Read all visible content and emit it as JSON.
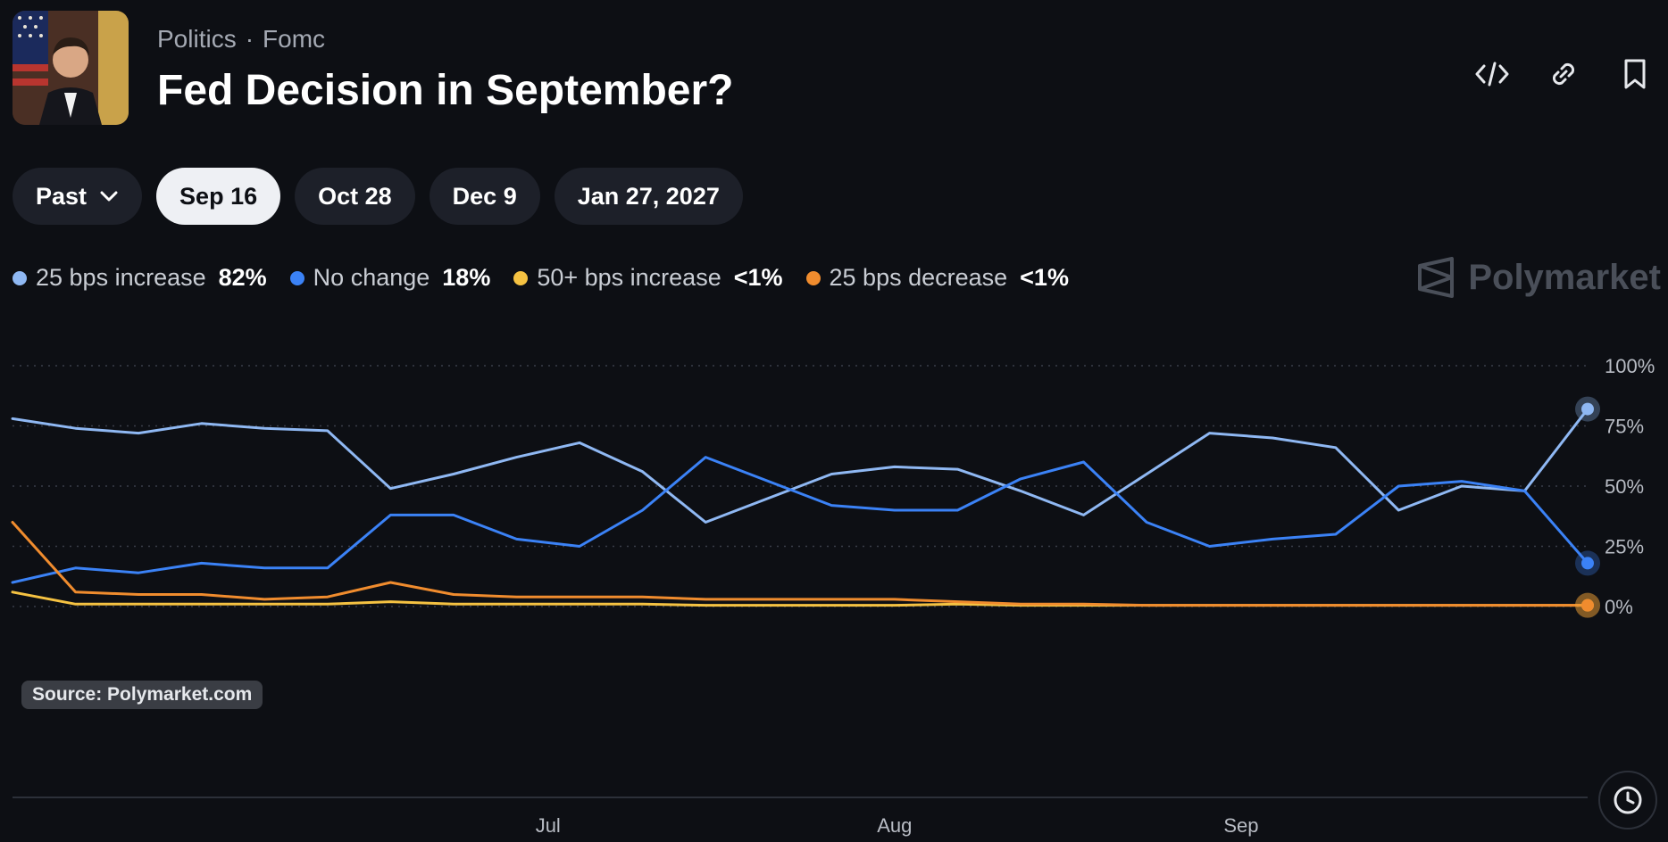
{
  "header": {
    "breadcrumb": [
      "Politics",
      "Fomc"
    ],
    "title": "Fed Decision in September?",
    "actions": [
      "embed-icon",
      "link-icon",
      "bookmark-icon"
    ]
  },
  "tabs": [
    {
      "label": "Past",
      "active": false,
      "dropdown": true
    },
    {
      "label": "Sep 16",
      "active": true
    },
    {
      "label": "Oct 28",
      "active": false
    },
    {
      "label": "Dec 9",
      "active": false
    },
    {
      "label": "Jan 27, 2027",
      "active": false
    }
  ],
  "legend": [
    {
      "name": "25 bps increase",
      "value": "82%",
      "color": "#8fb8f3"
    },
    {
      "name": "No change",
      "value": "18%",
      "color": "#3b82f6"
    },
    {
      "name": "50+ bps increase",
      "value": "<1%",
      "color": "#f5c242"
    },
    {
      "name": "25 bps decrease",
      "value": "<1%",
      "color": "#f08c2e"
    }
  ],
  "brand": "Polymarket",
  "source": "Source: Polymarket.com",
  "chart_data": {
    "type": "line",
    "x": [
      0,
      4,
      8,
      12,
      16,
      20,
      24,
      28,
      32,
      36,
      40,
      44,
      48,
      52,
      56,
      60,
      64,
      68,
      72,
      76,
      80,
      84,
      88,
      92,
      96,
      100
    ],
    "x_ticks": [
      {
        "label": "Jul",
        "x": 34
      },
      {
        "label": "Aug",
        "x": 56
      },
      {
        "label": "Sep",
        "x": 78
      }
    ],
    "y_ticks": [
      "0%",
      "25%",
      "50%",
      "75%",
      "100%"
    ],
    "ylim": [
      0,
      100
    ],
    "grid": true,
    "series": [
      {
        "name": "25 bps increase",
        "color": "#8fb8f3",
        "values": [
          78,
          74,
          72,
          76,
          74,
          73,
          49,
          55,
          62,
          68,
          56,
          35,
          45,
          55,
          58,
          57,
          48,
          38,
          55,
          72,
          70,
          66,
          40,
          50,
          48,
          82
        ]
      },
      {
        "name": "No change",
        "color": "#3b82f6",
        "values": [
          10,
          16,
          14,
          18,
          16,
          16,
          38,
          38,
          28,
          25,
          40,
          62,
          52,
          42,
          40,
          40,
          53,
          60,
          35,
          25,
          28,
          30,
          50,
          52,
          48,
          18
        ]
      },
      {
        "name": "50+ bps increase",
        "color": "#f5c242",
        "values": [
          6,
          1,
          1,
          1,
          1,
          1,
          2,
          1,
          1,
          1,
          1,
          0.5,
          0.5,
          0.5,
          0.5,
          1,
          0.5,
          0.5,
          0.5,
          0.5,
          0.5,
          0.5,
          0.5,
          0.5,
          0.5,
          0.5
        ]
      },
      {
        "name": "25 bps decrease",
        "color": "#f08c2e",
        "values": [
          35,
          6,
          5,
          5,
          3,
          4,
          10,
          5,
          4,
          4,
          4,
          3,
          3,
          3,
          3,
          2,
          1,
          1,
          0.5,
          0.5,
          0.5,
          0.5,
          0.5,
          0.5,
          0.5,
          0.5
        ]
      }
    ]
  }
}
